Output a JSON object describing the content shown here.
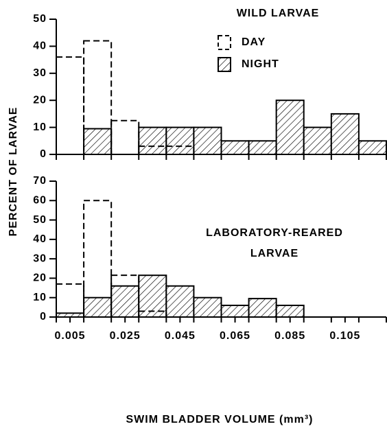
{
  "y_label": "PERCENT OF LARVAE",
  "x_label": "SWIM BLADDER VOLUME (mm³)",
  "chart_data": [
    {
      "type": "histogram",
      "title": [
        "WILD LARVAE"
      ],
      "legend": "top-center",
      "bins": [
        0,
        0.01,
        0.02,
        0.03,
        0.04,
        0.05,
        0.06,
        0.07,
        0.08,
        0.09,
        0.1,
        0.11,
        0.12
      ],
      "xlim": [
        0,
        0.12
      ],
      "ylim": [
        0,
        50
      ],
      "yticks": [
        0,
        10,
        20,
        30,
        40,
        50
      ],
      "series": [
        {
          "name": "NIGHT",
          "style": "hatched",
          "color": "#000000",
          "values": [
            0,
            9.5,
            0,
            10,
            10,
            10,
            5,
            5,
            20,
            10,
            15,
            5
          ]
        },
        {
          "name": "DAY",
          "style": "dashed",
          "color": "#000000",
          "values": [
            36,
            42,
            12.5,
            3,
            3,
            0,
            0,
            0,
            0,
            0,
            0,
            0
          ]
        }
      ]
    },
    {
      "type": "histogram",
      "title": [
        "LABORATORY-REARED",
        "LARVAE"
      ],
      "bins": [
        0,
        0.01,
        0.02,
        0.03,
        0.04,
        0.05,
        0.06,
        0.07,
        0.08,
        0.09,
        0.1,
        0.11,
        0.12
      ],
      "xlim": [
        0,
        0.12
      ],
      "ylim": [
        0,
        70
      ],
      "yticks": [
        0,
        10,
        20,
        30,
        40,
        50,
        60,
        70
      ],
      "xticks": [
        0.005,
        0.025,
        0.045,
        0.065,
        0.085,
        0.105
      ],
      "series": [
        {
          "style": "hatched",
          "color": "#000000",
          "values": [
            2,
            10,
            16,
            21.5,
            16,
            10,
            6,
            9.5,
            6,
            0,
            0,
            0
          ]
        },
        {
          "style": "dashed",
          "color": "#000000",
          "values": [
            17,
            60,
            21.5,
            3,
            0,
            0,
            0,
            0,
            0,
            0,
            0,
            0
          ]
        }
      ]
    }
  ]
}
